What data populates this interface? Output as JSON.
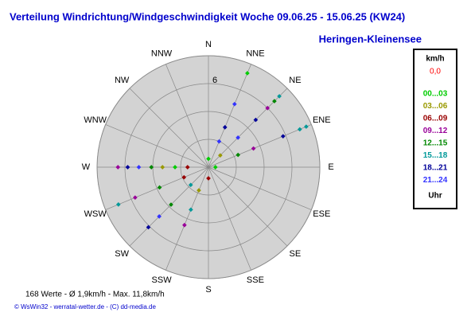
{
  "chart_data": {
    "type": "polar-scatter",
    "title": "Verteilung Windrichtung/Windgeschwindigkeit  Woche 09.06.25 - 15.06.25 (KW24)",
    "subtitle": "Heringen-Kleinensee",
    "categories": [
      "N",
      "NNE",
      "NE",
      "ENE",
      "E",
      "ESE",
      "SE",
      "SSE",
      "S",
      "SSW",
      "SW",
      "WSW",
      "W",
      "WNW",
      "NW",
      "NNW"
    ],
    "rlim": [
      0,
      8
    ],
    "rings": [
      2,
      4,
      6,
      8
    ],
    "rticks": [
      6
    ],
    "legend_title": "km/h",
    "legend_calm": "0,0",
    "legend_footer": "Uhr",
    "series": [
      {
        "name": "00...03",
        "color": "#00cc00",
        "x": [
          "NNE",
          "W",
          "N",
          "E"
        ],
        "values": [
          7.3,
          2.4,
          0.6,
          0.5
        ]
      },
      {
        "name": "03...06",
        "color": "#999900",
        "x": [
          "W",
          "SSW",
          "NE"
        ],
        "values": [
          3.3,
          1.8,
          1.2
        ]
      },
      {
        "name": "06...09",
        "color": "#990000",
        "x": [
          "W",
          "WSW",
          "S"
        ],
        "values": [
          1.5,
          1.9,
          0.8
        ]
      },
      {
        "name": "09...12",
        "color": "#990099",
        "x": [
          "WSW",
          "SSW",
          "W",
          "NE",
          "ENE"
        ],
        "values": [
          5.7,
          4.5,
          6.5,
          6.0,
          3.5
        ]
      },
      {
        "name": "12...15",
        "color": "#008800",
        "x": [
          "NE",
          "WSW",
          "SW",
          "W",
          "ENE"
        ],
        "values": [
          6.7,
          3.8,
          3.8,
          4.1,
          2.3
        ]
      },
      {
        "name": "15...18",
        "color": "#009999",
        "x": [
          "NE",
          "ENE",
          "ENE",
          "WSW",
          "SSW",
          "SW"
        ],
        "values": [
          7.2,
          7.6,
          7.1,
          7.0,
          3.3,
          1.8
        ]
      },
      {
        "name": "18...21",
        "color": "#000099",
        "x": [
          "SW",
          "W",
          "NNE",
          "NE",
          "ENE"
        ],
        "values": [
          6.1,
          5.8,
          3.1,
          4.8,
          5.8
        ]
      },
      {
        "name": "21...24",
        "color": "#3333ff",
        "x": [
          "NNE",
          "SW",
          "W",
          "NNE",
          "NE"
        ],
        "values": [
          4.9,
          5.0,
          5.0,
          2.0,
          3.0
        ]
      }
    ],
    "footer": "168 Werte   -   Ø 1,9km/h  -  Max. 11,8km/h",
    "credits": "© WsWin32  -  werratal-wetter.de  -  (C) dd-media.de"
  }
}
